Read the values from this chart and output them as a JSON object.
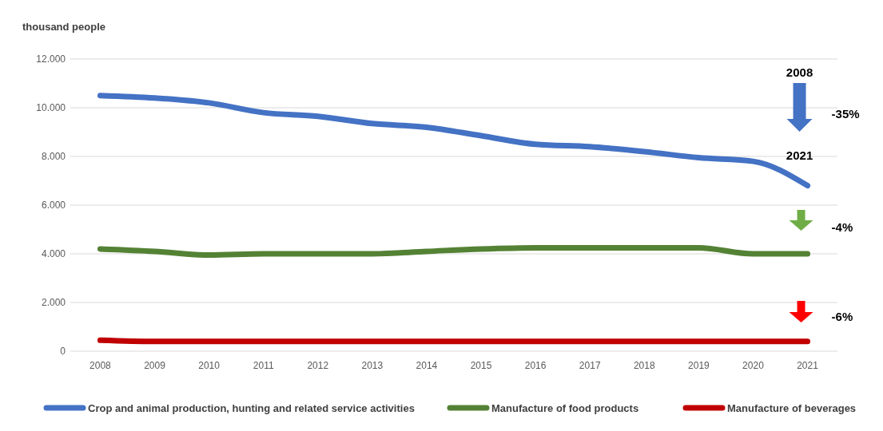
{
  "chart_data": {
    "type": "line",
    "ylabel": "thousand people",
    "categories": [
      "2008",
      "2009",
      "2010",
      "2011",
      "2012",
      "2013",
      "2014",
      "2015",
      "2016",
      "2017",
      "2018",
      "2019",
      "2020",
      "2021"
    ],
    "series": [
      {
        "name": "Crop and animal production, hunting and related service activities",
        "color": "#4472c4",
        "values": [
          10500,
          10400,
          10200,
          9800,
          9650,
          9350,
          9200,
          8850,
          8500,
          8400,
          8200,
          7950,
          7800,
          6800
        ]
      },
      {
        "name": "Manufacture of food products",
        "color": "#548235",
        "values": [
          4200,
          4100,
          3950,
          4000,
          4000,
          4000,
          4100,
          4200,
          4250,
          4250,
          4250,
          4250,
          4000,
          4000
        ]
      },
      {
        "name": "Manufacture of beverages",
        "color": "#c00000",
        "values": [
          450,
          400,
          400,
          400,
          400,
          400,
          400,
          400,
          400,
          400,
          400,
          400,
          400,
          400
        ]
      }
    ],
    "ylim": [
      0,
      12000
    ],
    "yticks": [
      {
        "value": 0,
        "label": "0"
      },
      {
        "value": 2000,
        "label": "2.000"
      },
      {
        "value": 4000,
        "label": "4.000"
      },
      {
        "value": 6000,
        "label": "6.000"
      },
      {
        "value": 8000,
        "label": "8.000"
      },
      {
        "value": 10000,
        "label": "10.000"
      },
      {
        "value": 12000,
        "label": "12.000"
      }
    ],
    "grid": "y",
    "legend": "bottom",
    "marker": "none",
    "line_style": "solid",
    "annotations": [
      "2008",
      "-35%",
      "2021",
      "-4%",
      "-6%"
    ]
  }
}
